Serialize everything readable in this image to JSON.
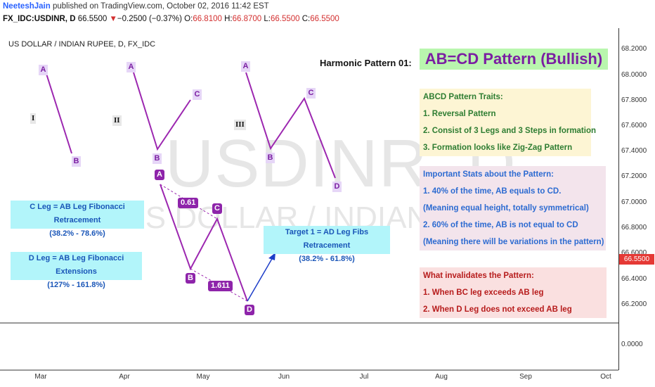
{
  "header": {
    "author": "NeeteshJain",
    "published": "published on TradingView.com, October 02, 2016 11:42 EST",
    "symbol": "FX_IDC:USDINR, D",
    "last": "66.5500",
    "change_arrow": "▼",
    "change": "−0.2500 (−0.37%)",
    "o_label": "O:",
    "o_val": "66.8100",
    "h_label": "H:",
    "h_val": "66.8700",
    "l_label": "L:",
    "l_val": "66.5500",
    "c_label": "C:",
    "c_val": "66.5500"
  },
  "chart_title": "US DOLLAR / INDIAN RUPEE, D, FX_IDC",
  "watermark": {
    "big": "USDINR, D",
    "small": "US DOLLAR / INDIAN RUPEE"
  },
  "y_ticks": [
    "68.2000",
    "68.0000",
    "67.8000",
    "67.6000",
    "67.4000",
    "67.2000",
    "67.0000",
    "66.8000",
    "66.6000",
    "66.4000",
    "66.2000",
    "0.0000"
  ],
  "x_ticks": [
    "Mar",
    "Apr",
    "May",
    "Jun",
    "Jul",
    "Aug",
    "Sep",
    "Oct"
  ],
  "price_tag": "66.5500",
  "pattern_labels": {
    "p1": [
      "A",
      "B"
    ],
    "p2": [
      "A",
      "B",
      "C"
    ],
    "p3": [
      "A",
      "B",
      "C",
      "D"
    ],
    "roman": [
      "I",
      "II",
      "III"
    ],
    "main": [
      "A",
      "B",
      "C",
      "D"
    ],
    "ratios": [
      "0.61",
      "1.611"
    ]
  },
  "notes": {
    "c_leg_title": "C Leg = AB Leg Fibonacci Retracement",
    "c_leg_range": "(38.2% - 78.6%)",
    "d_leg_title": "D Leg = AB Leg Fibonacci Extensions",
    "d_leg_range": "(127% - 161.8%)",
    "target_title": "Target 1 = AD Leg Fibs Retracement",
    "target_range": "(38.2% - 61.8%)"
  },
  "harmonic_label": "Harmonic Pattern 01:",
  "harmonic_title": "AB=CD Pattern (Bullish)",
  "traits": {
    "heading": "ABCD Pattern Traits:",
    "items": [
      "1. Reversal Pattern",
      "2. Consist of 3 Legs and 3 Steps in formation",
      "3. Formation looks like Zig-Zag Pattern"
    ]
  },
  "stats": {
    "heading": "Important Stats about the Pattern:",
    "items": [
      "1. 40% of the time, AB equals to CD.",
      "(Meaning equal height, totally symmetrical)",
      "2. 60% of the time, AB is not equal to CD",
      "(Meaning there will be variations in the pattern)"
    ]
  },
  "invalid": {
    "heading": "What invalidates the Pattern:",
    "items": [
      "1. When BC leg exceeds AB leg",
      "2. When D Leg does not exceed AB leg"
    ]
  },
  "colors": {
    "pattern_line": "#9c27b0",
    "target_arrow": "#1e3ec8",
    "price_tag": "#e53935"
  }
}
